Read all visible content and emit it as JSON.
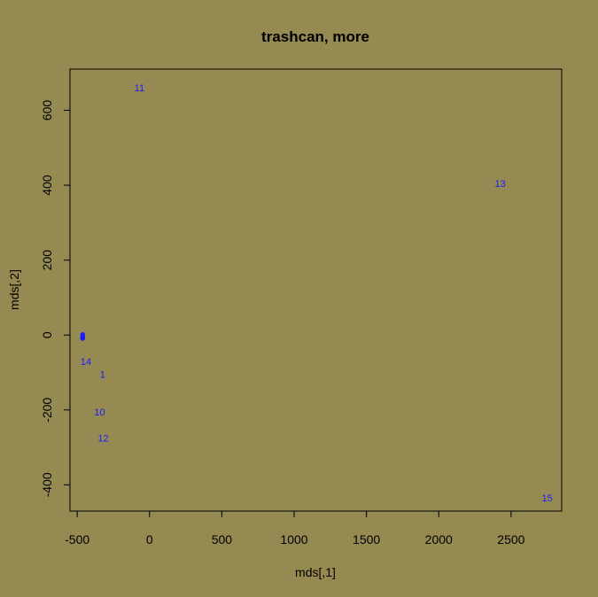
{
  "chart_data": {
    "type": "scatter",
    "title": "trashcan, more",
    "xlabel": "mds[,1]",
    "ylabel": "mds[,2]",
    "xlim": [
      -550,
      2850
    ],
    "ylim": [
      -470,
      710
    ],
    "xticks": [
      -500,
      0,
      500,
      1000,
      1500,
      2000,
      2500
    ],
    "yticks": [
      -400,
      -200,
      0,
      200,
      400,
      600
    ],
    "grid": false,
    "point_color": "#1a1aff",
    "background": "#958a52",
    "points": [
      {
        "label": "1",
        "x": -325,
        "y": -105
      },
      {
        "label": "2",
        "x": -462,
        "y": -2
      },
      {
        "label": "3",
        "x": -462,
        "y": -5
      },
      {
        "label": "4",
        "x": -462,
        "y": -3
      },
      {
        "label": "5",
        "x": -462,
        "y": -4
      },
      {
        "label": "6",
        "x": -462,
        "y": -1
      },
      {
        "label": "7",
        "x": -462,
        "y": -6
      },
      {
        "label": "8",
        "x": -462,
        "y": -3
      },
      {
        "label": "9",
        "x": -462,
        "y": -4
      },
      {
        "label": "10",
        "x": -345,
        "y": -205
      },
      {
        "label": "11",
        "x": -70,
        "y": 660
      },
      {
        "label": "12",
        "x": -320,
        "y": -275
      },
      {
        "label": "13",
        "x": 2425,
        "y": 405
      },
      {
        "label": "14",
        "x": -440,
        "y": -70
      },
      {
        "label": "15",
        "x": 2750,
        "y": -435
      }
    ]
  }
}
